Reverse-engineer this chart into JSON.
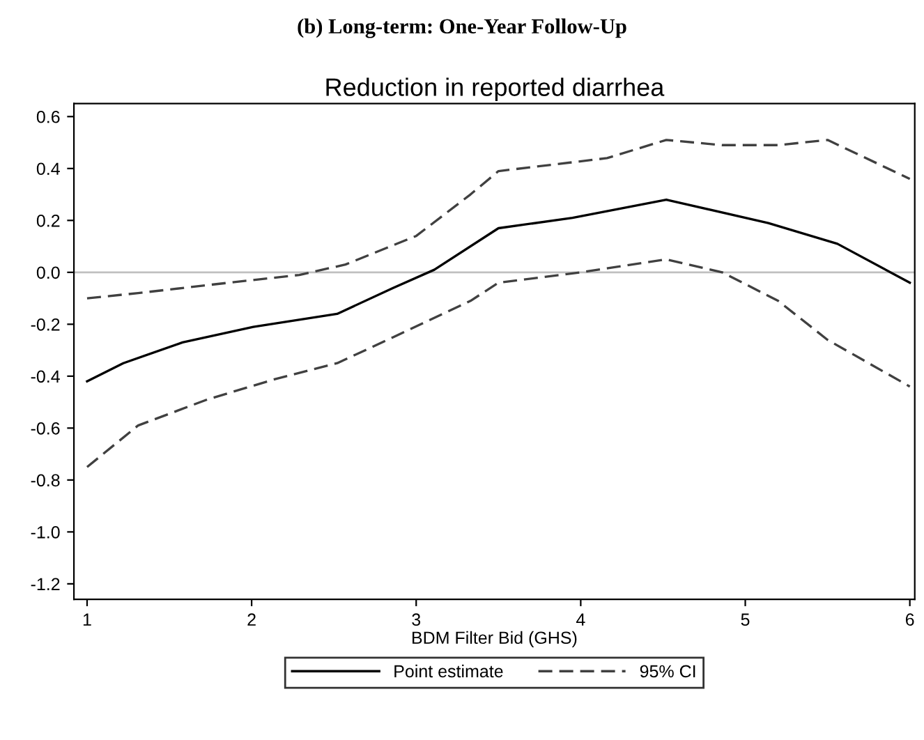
{
  "chart_data": {
    "type": "line",
    "title": "(b) Long-term: One-Year Follow-Up",
    "subtitle": "Reduction in reported diarrhea",
    "xlabel": "BDM Filter Bid (GHS)",
    "series": [
      {
        "name": "Point estimate",
        "color": "#000000",
        "line_style": "solid",
        "x": [
          1.0,
          1.22,
          1.58,
          2.01,
          2.52,
          2.86,
          3.11,
          3.5,
          3.95,
          4.52,
          5.14,
          5.56,
          6.0
        ],
        "values": [
          -0.42,
          -0.35,
          -0.27,
          -0.21,
          -0.16,
          -0.06,
          0.01,
          0.17,
          0.21,
          0.28,
          0.19,
          0.11,
          -0.04
        ]
      },
      {
        "name": "95% CI",
        "color": "#404040",
        "line_style": "dashed",
        "x": [
          1.0,
          1.31,
          1.86,
          2.29,
          2.57,
          3.0,
          3.33,
          3.5,
          4.16,
          4.52,
          4.86,
          5.2,
          5.5,
          6.0
        ],
        "values": [
          -0.1,
          -0.08,
          -0.04,
          -0.01,
          0.03,
          0.14,
          0.3,
          0.39,
          0.44,
          0.51,
          0.49,
          0.49,
          0.51,
          0.36
        ]
      },
      {
        "color": "#404040",
        "line_style": "dashed",
        "x": [
          1.0,
          1.31,
          1.73,
          2.15,
          2.52,
          2.86,
          3.33,
          3.5,
          4.0,
          4.52,
          4.86,
          5.2,
          5.5,
          6.0
        ],
        "values": [
          -0.75,
          -0.59,
          -0.49,
          -0.41,
          -0.35,
          -0.25,
          -0.11,
          -0.04,
          0.0,
          0.05,
          0.0,
          -0.11,
          -0.26,
          -0.44
        ]
      }
    ],
    "xlim": [
      0.92,
      6.03
    ],
    "ylim": [
      -1.26,
      0.65
    ],
    "xticks": [
      1,
      2,
      3,
      4,
      5,
      6
    ],
    "yticks": [
      {
        "value": 0.6,
        "label": "0.6"
      },
      {
        "value": 0.4,
        "label": "0.4"
      },
      {
        "value": 0.2,
        "label": "0.2"
      },
      {
        "value": 0.0,
        "label": "0.0"
      },
      {
        "value": -0.2,
        "label": "-0.2"
      },
      {
        "value": -0.4,
        "label": "-0.4"
      },
      {
        "value": -0.6,
        "label": "-0.6"
      },
      {
        "value": -0.8,
        "label": "-0.8"
      },
      {
        "value": -1.0,
        "label": "-1.0"
      },
      {
        "value": -1.2,
        "label": "-1.2"
      }
    ],
    "ref_lines": [
      {
        "axis": "y",
        "value": 0,
        "color": "#c0c0c0",
        "line_style": "solid"
      }
    ],
    "grid": false,
    "legend": "bottom",
    "marker": "none"
  }
}
